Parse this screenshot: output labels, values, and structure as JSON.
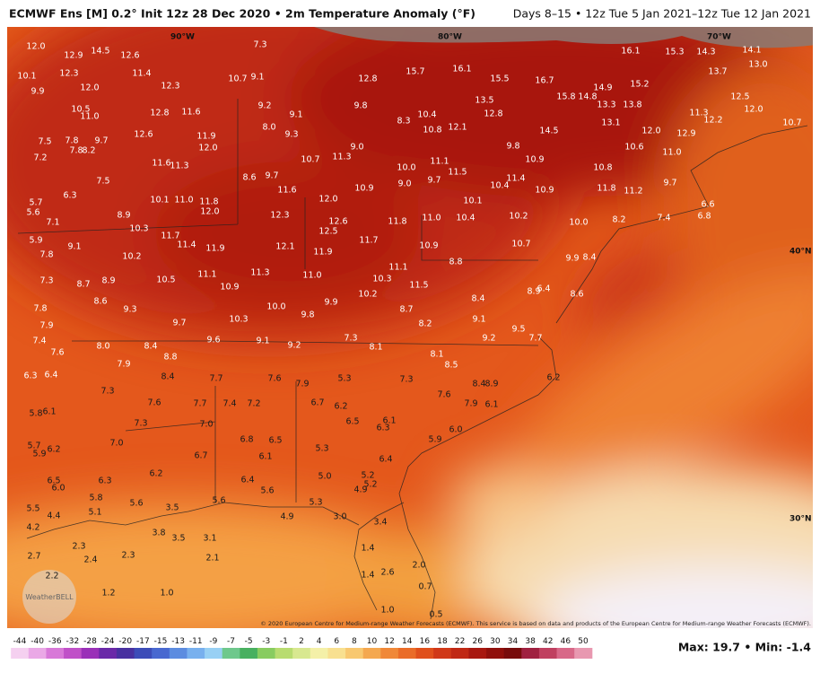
{
  "header": {
    "title": "ECMWF Ens [M] 0.2° Init 12z 28 Dec 2020 • 2m Temperature Anomaly (°F)",
    "period": "Days 8–15 • 12z Tue 5 Jan 2021–12z Tue 12 Jan 2021"
  },
  "map": {
    "geo_labels": [
      "90°W",
      "80°W",
      "70°W",
      "40°N",
      "30°N"
    ],
    "logo": "WeatherBELL",
    "values": [
      "12.0",
      "12.9",
      "14.5",
      "12.6",
      "10.1",
      "12.3",
      "9.9",
      "12.0",
      "11.4",
      "12.3",
      "7.3",
      "10.7",
      "9.1",
      "12.8",
      "15.7",
      "16.1",
      "15.5",
      "16.7",
      "16.1",
      "15.3",
      "14.3",
      "14.1",
      "13.0",
      "13.7",
      "15.2",
      "14.9",
      "15.8",
      "14.8",
      "12.5",
      "13.5",
      "12.8",
      "10.5",
      "11.0",
      "12.8",
      "11.6",
      "9.2",
      "9.1",
      "9.8",
      "10.4",
      "8.3",
      "10.8",
      "12.1",
      "13.3",
      "13.8",
      "11.3",
      "12.2",
      "12.0",
      "10.7",
      "13.1",
      "14.5",
      "12.0",
      "12.9",
      "8.0",
      "9.3",
      "12.6",
      "11.9",
      "12.0",
      "7.5",
      "7.8",
      "9.7",
      "7.8",
      "8.2",
      "7.2",
      "9.8",
      "10.6",
      "11.0",
      "9.0",
      "11.3",
      "10.7",
      "11.6",
      "11.3",
      "10.9",
      "11.1",
      "11.5",
      "10.0",
      "10.8",
      "8.6",
      "9.7",
      "11.4",
      "10.4",
      "10.9",
      "9.0",
      "9.7",
      "7.5",
      "11.6",
      "10.9",
      "11.8",
      "11.2",
      "9.7",
      "6.3",
      "10.1",
      "11.0",
      "11.8",
      "12.0",
      "10.1",
      "5.7",
      "5.6",
      "8.9",
      "12.0",
      "12.3",
      "12.6",
      "11.8",
      "11.0",
      "10.4",
      "10.2",
      "10.0",
      "8.2",
      "7.4",
      "6.6",
      "6.8",
      "7.1",
      "10.3",
      "12.5",
      "11.7",
      "5.9",
      "9.1",
      "11.4",
      "11.9",
      "12.1",
      "11.9",
      "11.7",
      "10.9",
      "10.7",
      "7.8",
      "10.2",
      "9.9",
      "8.4",
      "8.8",
      "7.3",
      "8.7",
      "8.9",
      "10.5",
      "11.1",
      "11.3",
      "11.0",
      "11.1",
      "10.3",
      "11.5",
      "10.2",
      "8.9",
      "6.4",
      "8.6",
      "10.9",
      "8.6",
      "10.0",
      "9.9",
      "8.4",
      "7.8",
      "9.3",
      "8.7",
      "9.8",
      "9.1",
      "10.3",
      "9.7",
      "7.9",
      "8.2",
      "9.5",
      "7.7",
      "9.2",
      "9.6",
      "9.1",
      "9.2",
      "7.3",
      "8.1",
      "7.4",
      "7.6",
      "8.0",
      "8.4",
      "8.1",
      "8.8",
      "7.9",
      "8.5",
      "6.3",
      "6.4",
      "8.4",
      "7.7",
      "7.6",
      "7.9",
      "5.3",
      "7.3",
      "8.4",
      "8.9",
      "6.2",
      "7.3",
      "7.6",
      "7.6",
      "7.7",
      "7.4",
      "7.2",
      "6.7",
      "6.2",
      "7.9",
      "6.1",
      "5.8",
      "6.1",
      "6.5",
      "6.1",
      "6.3",
      "7.3",
      "7.0",
      "6.0",
      "6.8",
      "6.5",
      "5.9",
      "7.0",
      "5.7",
      "6.2",
      "5.9",
      "5.3",
      "6.7",
      "6.1",
      "6.4",
      "6.2",
      "6.4",
      "5.0",
      "5.2",
      "6.5",
      "6.3",
      "6.0",
      "5.6",
      "5.2",
      "4.9",
      "5.8",
      "5.6",
      "5.6",
      "5.3",
      "5.5",
      "4.4",
      "5.1",
      "3.5",
      "3.0",
      "4.9",
      "3.4",
      "4.2",
      "3.8",
      "3.5",
      "3.1",
      "2.3",
      "1.4",
      "2.7",
      "2.4",
      "2.3",
      "2.1",
      "2.6",
      "2.0",
      "1.4",
      "2.2",
      "0.7",
      "1.2",
      "1.0",
      "1.0",
      "0.5"
    ]
  },
  "footer": {
    "copyright": "© 2020 European Centre for Medium-range Weather Forecasts (ECMWF). This service is based on data and products of the European Centre for Medium-range Weather Forecasts (ECMWF).",
    "stats": "Max: 19.7 • Min: -1.4",
    "colorbar": [
      -44,
      -40,
      -36,
      -32,
      -28,
      -24,
      -20,
      -17,
      -15,
      -13,
      -11,
      -9,
      -7,
      -5,
      -3,
      -1,
      2,
      4,
      6,
      8,
      10,
      12,
      14,
      16,
      18,
      22,
      26,
      30,
      34,
      38,
      42,
      46,
      50
    ]
  }
}
